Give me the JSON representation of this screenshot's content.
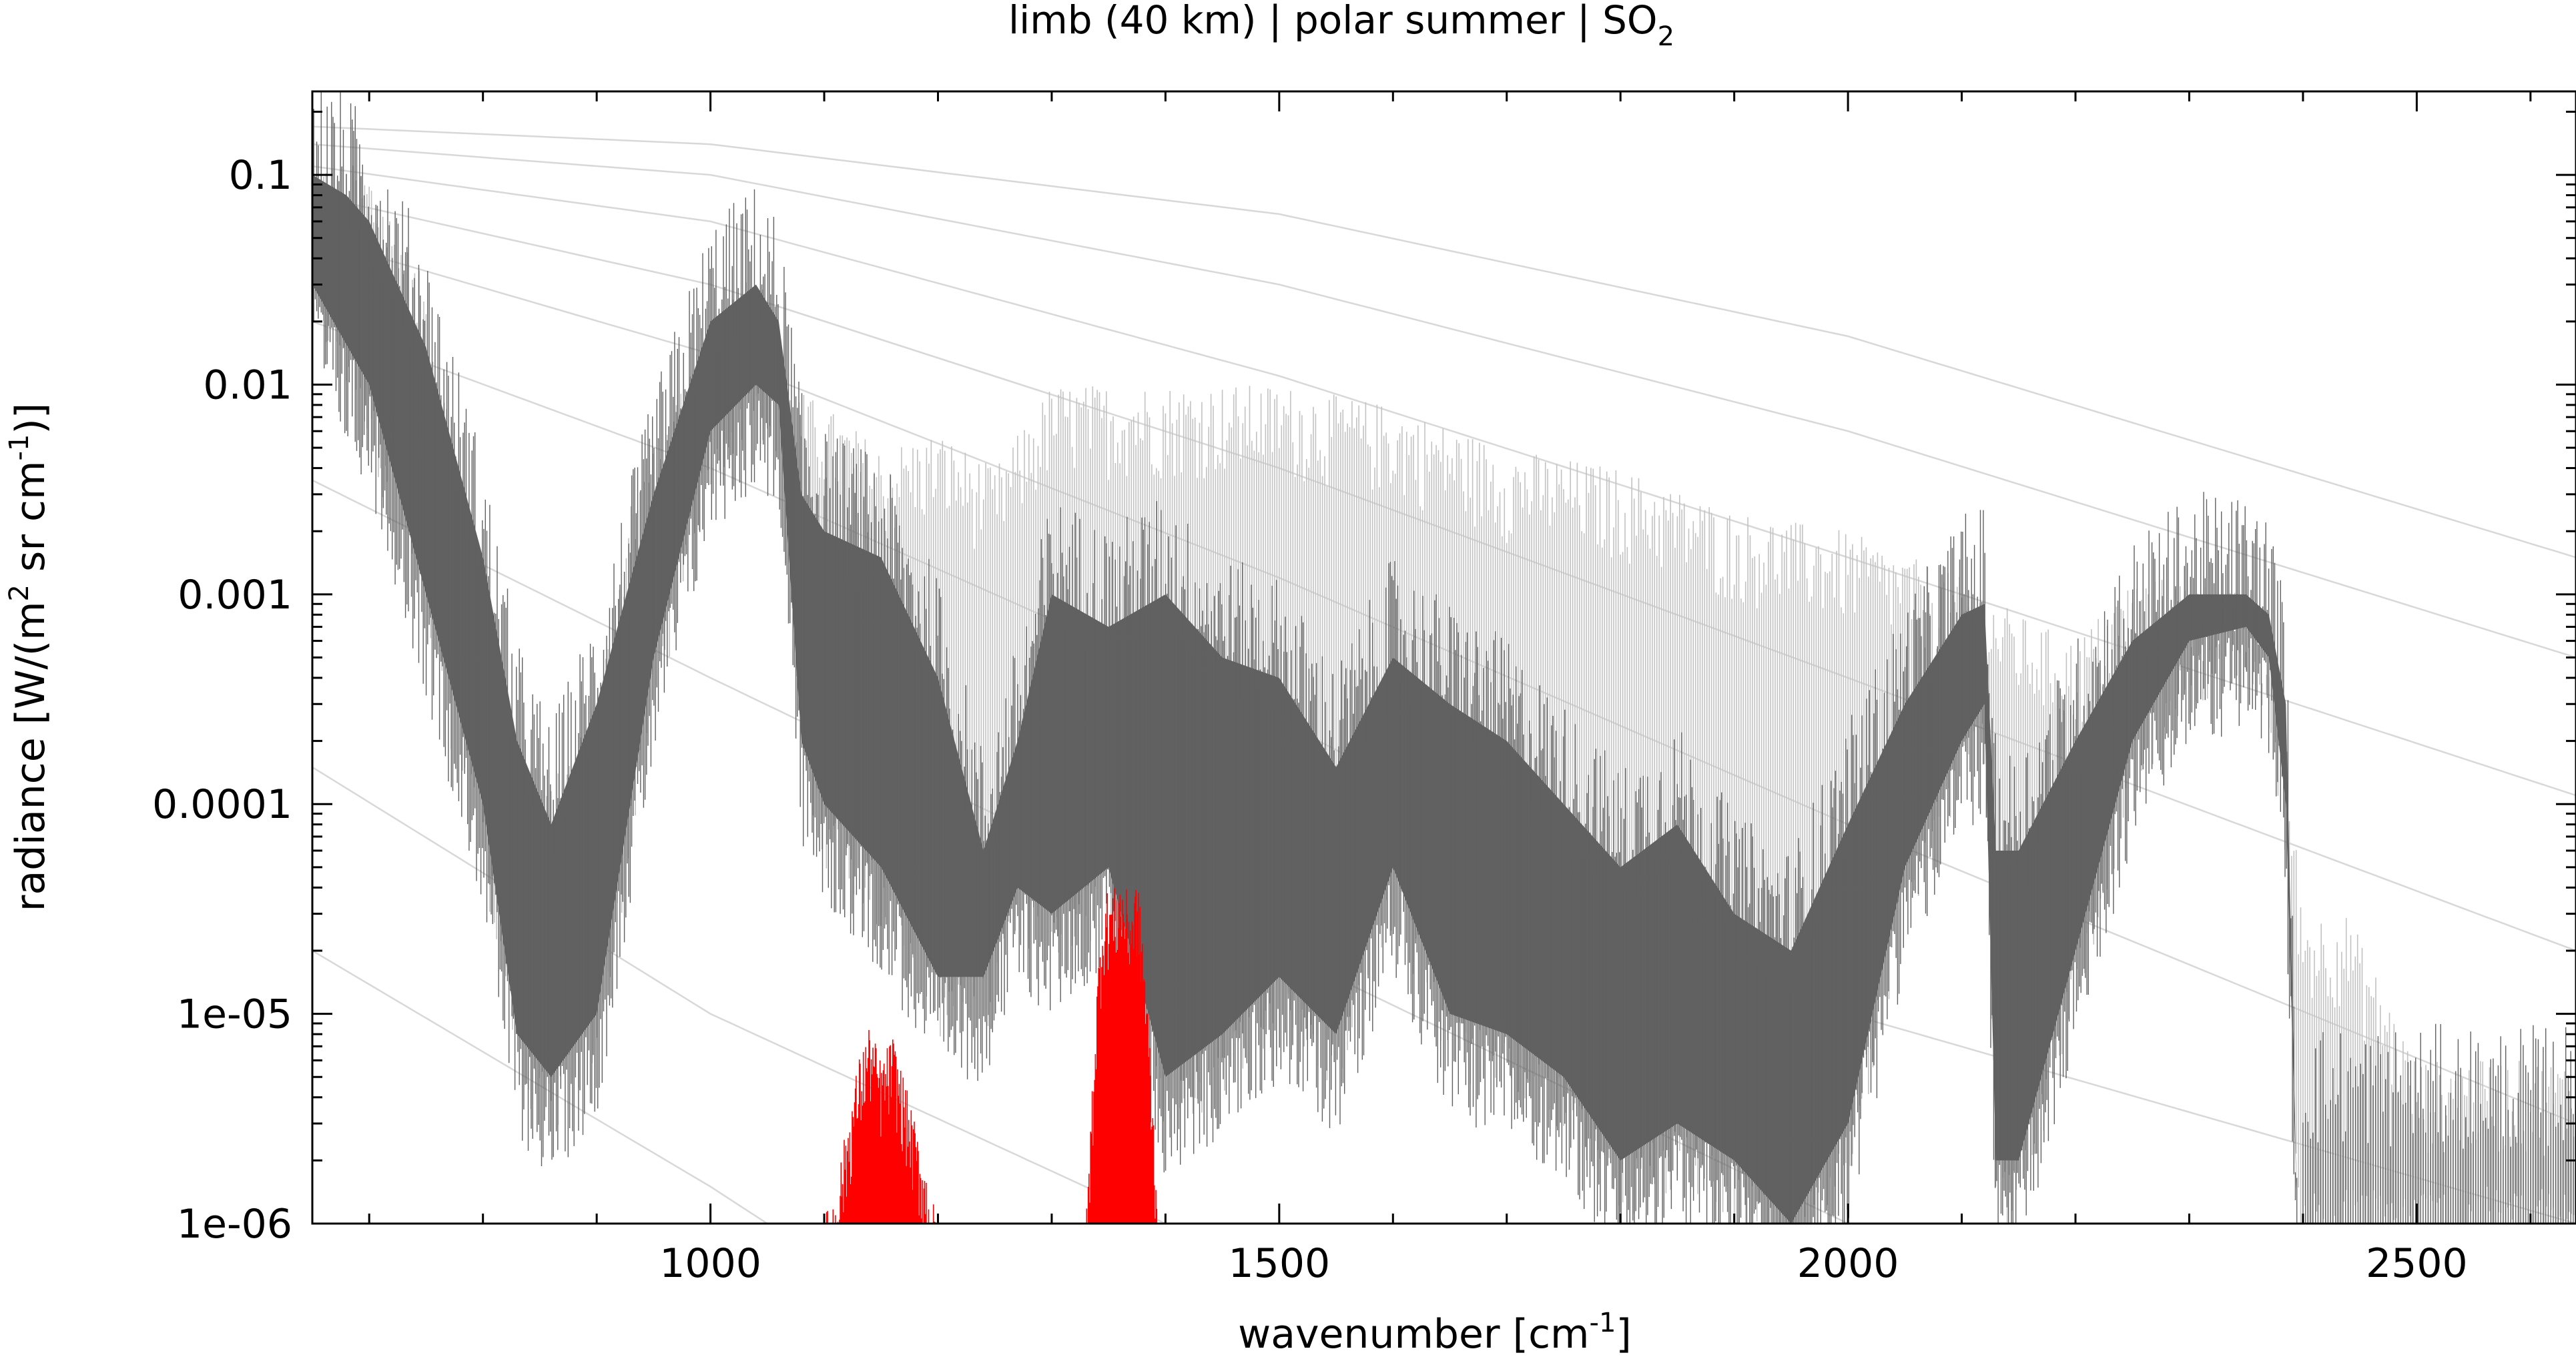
{
  "chart_data": {
    "type": "line",
    "title": {
      "text": "limb (40 km) | polar summer | SO",
      "subscript": "2"
    },
    "xlabel": {
      "text": "wavenumber [cm",
      "sup": "-1",
      "tail": "]"
    },
    "ylabel": {
      "text": "radiance [W/(m",
      "sup1": "2",
      "mid": " sr cm",
      "sup2": "-1",
      "tail": ")]"
    },
    "xlim": [
      650,
      2640
    ],
    "ylim": [
      1e-06,
      0.25
    ],
    "yscale": "log",
    "grid": false,
    "xticks": [
      1000,
      1500,
      2000,
      2500
    ],
    "xtick_labels": [
      "1000",
      "1500",
      "2000",
      "2500"
    ],
    "yticks": [
      0.1,
      0.01,
      0.001,
      0.0001,
      1e-05,
      1e-06
    ],
    "ytick_labels": [
      "0.1",
      "0.01",
      "0.001",
      "0.0001",
      "1e-05",
      "1e-06"
    ],
    "series": [
      {
        "role": "envelope",
        "color": "#c2c2c2",
        "points": [
          [
            650,
            0.12
          ],
          [
            700,
            0.11
          ],
          [
            750,
            0.03
          ],
          [
            800,
            0.001
          ],
          [
            850,
            0.0001
          ],
          [
            900,
            0.0003
          ],
          [
            930,
            0.003
          ],
          [
            960,
            0.006
          ],
          [
            1000,
            0.02
          ],
          [
            1040,
            0.04
          ],
          [
            1070,
            0.01
          ],
          [
            1100,
            0.008
          ],
          [
            1150,
            0.005
          ],
          [
            1200,
            0.006
          ],
          [
            1250,
            0.004
          ],
          [
            1300,
            0.01
          ],
          [
            1350,
            0.01
          ],
          [
            1400,
            0.01
          ],
          [
            1500,
            0.01
          ],
          [
            1600,
            0.008
          ],
          [
            1700,
            0.005
          ],
          [
            1800,
            0.004
          ],
          [
            1900,
            0.0025
          ],
          [
            2000,
            0.002
          ],
          [
            2100,
            0.0012
          ],
          [
            2150,
            0.0008
          ],
          [
            2200,
            0.0006
          ],
          [
            2250,
            0.0012
          ],
          [
            2300,
            0.0012
          ],
          [
            2350,
            0.001
          ],
          [
            2380,
            0.0004
          ],
          [
            2400,
            3e-05
          ],
          [
            2440,
            3e-05
          ],
          [
            2500,
            6e-06
          ],
          [
            2640,
            6e-06
          ]
        ]
      },
      {
        "role": "upper-band",
        "color": "#616161",
        "points": [
          [
            650,
            0.1
          ],
          [
            680,
            0.08
          ],
          [
            700,
            0.06
          ],
          [
            750,
            0.015
          ],
          [
            800,
            0.0015
          ],
          [
            830,
            0.0002
          ],
          [
            860,
            8e-05
          ],
          [
            900,
            0.0003
          ],
          [
            950,
            0.003
          ],
          [
            1000,
            0.02
          ],
          [
            1040,
            0.03
          ],
          [
            1060,
            0.02
          ],
          [
            1080,
            0.003
          ],
          [
            1100,
            0.002
          ],
          [
            1150,
            0.0015
          ],
          [
            1200,
            0.0004
          ],
          [
            1240,
            6e-05
          ],
          [
            1270,
            0.0002
          ],
          [
            1300,
            0.001
          ],
          [
            1350,
            0.0007
          ],
          [
            1400,
            0.001
          ],
          [
            1450,
            0.0005
          ],
          [
            1500,
            0.0004
          ],
          [
            1550,
            0.00015
          ],
          [
            1600,
            0.0005
          ],
          [
            1650,
            0.0003
          ],
          [
            1700,
            0.0002
          ],
          [
            1750,
            0.0001
          ],
          [
            1800,
            5e-05
          ],
          [
            1850,
            8e-05
          ],
          [
            1900,
            3e-05
          ],
          [
            1950,
            2e-05
          ],
          [
            2000,
            8e-05
          ],
          [
            2050,
            0.0003
          ],
          [
            2100,
            0.0008
          ],
          [
            2120,
            0.0009
          ],
          [
            2130,
            6e-05
          ],
          [
            2150,
            6e-05
          ],
          [
            2200,
            0.0002
          ],
          [
            2250,
            0.0006
          ],
          [
            2300,
            0.001
          ],
          [
            2350,
            0.001
          ],
          [
            2370,
            0.0008
          ],
          [
            2385,
            0.0003
          ],
          [
            2395,
            1e-06
          ]
        ]
      },
      {
        "role": "lower-band",
        "color": "#616161",
        "points": [
          [
            650,
            0.03
          ],
          [
            700,
            0.01
          ],
          [
            750,
            0.001
          ],
          [
            800,
            0.0001
          ],
          [
            830,
            8e-06
          ],
          [
            860,
            5e-06
          ],
          [
            900,
            1e-05
          ],
          [
            950,
            0.0005
          ],
          [
            1000,
            0.006
          ],
          [
            1040,
            0.01
          ],
          [
            1060,
            0.008
          ],
          [
            1080,
            0.0002
          ],
          [
            1100,
            0.0001
          ],
          [
            1150,
            5e-05
          ],
          [
            1200,
            1.5e-05
          ],
          [
            1240,
            1.5e-05
          ],
          [
            1270,
            4e-05
          ],
          [
            1300,
            3e-05
          ],
          [
            1350,
            5e-05
          ],
          [
            1400,
            5e-06
          ],
          [
            1450,
            8e-06
          ],
          [
            1500,
            1.5e-05
          ],
          [
            1550,
            8e-06
          ],
          [
            1600,
            5e-05
          ],
          [
            1650,
            1e-05
          ],
          [
            1700,
            8e-06
          ],
          [
            1750,
            5e-06
          ],
          [
            1800,
            2e-06
          ],
          [
            1850,
            3e-06
          ],
          [
            1900,
            2e-06
          ],
          [
            1950,
            1e-06
          ],
          [
            2000,
            3e-06
          ],
          [
            2050,
            5e-05
          ],
          [
            2100,
            0.0002
          ],
          [
            2120,
            0.0003
          ],
          [
            2130,
            2e-06
          ],
          [
            2150,
            2e-06
          ],
          [
            2200,
            2e-05
          ],
          [
            2250,
            0.0002
          ],
          [
            2300,
            0.0006
          ],
          [
            2350,
            0.0007
          ],
          [
            2370,
            0.0005
          ],
          [
            2385,
            0.0001
          ],
          [
            2395,
            1e-06
          ]
        ]
      },
      {
        "role": "SO2-band-1",
        "color": "#ff0000",
        "points": [
          [
            1098,
            1e-06
          ],
          [
            1110,
            1.5e-06
          ],
          [
            1120,
            3e-06
          ],
          [
            1130,
            6e-06
          ],
          [
            1140,
            9e-06
          ],
          [
            1150,
            6e-06
          ],
          [
            1160,
            8e-06
          ],
          [
            1170,
            5e-06
          ],
          [
            1180,
            3e-06
          ],
          [
            1190,
            1.8e-06
          ],
          [
            1200,
            1e-06
          ]
        ]
      },
      {
        "role": "SO2-band-2",
        "color": "#ff0000",
        "points": [
          [
            1330,
            1e-06
          ],
          [
            1335,
            4e-06
          ],
          [
            1340,
            1.5e-05
          ],
          [
            1345,
            3.5e-05
          ],
          [
            1350,
            4e-05
          ],
          [
            1355,
            4e-05
          ],
          [
            1360,
            4.5e-05
          ],
          [
            1365,
            4e-05
          ],
          [
            1370,
            3.5e-05
          ],
          [
            1375,
            4.5e-05
          ],
          [
            1380,
            2.5e-05
          ],
          [
            1385,
            1e-05
          ],
          [
            1390,
            3e-06
          ],
          [
            1395,
            1e-06
          ]
        ]
      },
      {
        "role": "background-curves",
        "color": "#d8d8d8",
        "curves": [
          [
            [
              650,
              0.17
            ],
            [
              1000,
              0.14
            ],
            [
              1500,
              0.065
            ],
            [
              2000,
              0.017
            ],
            [
              2640,
              0.0015
            ]
          ],
          [
            [
              650,
              0.14
            ],
            [
              1000,
              0.1
            ],
            [
              1500,
              0.03
            ],
            [
              2000,
              0.006
            ],
            [
              2640,
              0.0005
            ]
          ],
          [
            [
              650,
              0.11
            ],
            [
              1000,
              0.06
            ],
            [
              1500,
              0.011
            ],
            [
              2000,
              0.0015
            ],
            [
              2640,
              0.00011
            ]
          ],
          [
            [
              650,
              0.08
            ],
            [
              1000,
              0.03
            ],
            [
              1500,
              0.004
            ],
            [
              2000,
              0.0004
            ],
            [
              2640,
              2e-05
            ]
          ],
          [
            [
              650,
              0.05
            ],
            [
              1000,
              0.014
            ],
            [
              1500,
              0.0012
            ],
            [
              2000,
              8e-05
            ],
            [
              2640,
              3e-06
            ]
          ],
          [
            [
              650,
              0.02
            ],
            [
              1000,
              0.004
            ],
            [
              1500,
              0.00025
            ],
            [
              2000,
              1e-05
            ],
            [
              2640,
              1e-06
            ]
          ],
          [
            [
              650,
              0.0035
            ],
            [
              1000,
              0.0004
            ],
            [
              1500,
              2e-05
            ],
            [
              2000,
              1e-06
            ]
          ],
          [
            [
              650,
              0.00015
            ],
            [
              1000,
              1e-05
            ],
            [
              1400,
              1e-06
            ]
          ],
          [
            [
              650,
              2e-05
            ],
            [
              1000,
              1.5e-06
            ],
            [
              1050,
              1e-06
            ]
          ]
        ]
      }
    ]
  }
}
